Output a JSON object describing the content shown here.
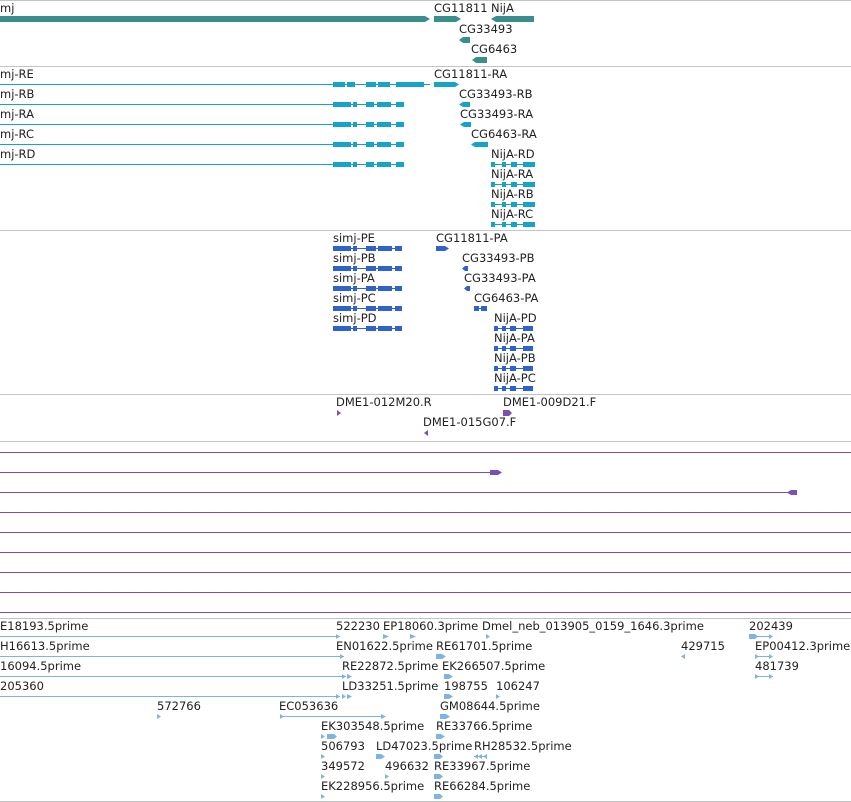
{
  "colors": {
    "gene": "#3a8f8e",
    "transcript": "#16a3c9",
    "protein": "#2f63cc",
    "clone": "#7b50b0",
    "est": "#7fb4e1",
    "divider": "#c4c4c4"
  },
  "tracks": {
    "genes": {
      "labels": [
        "mj",
        "CG11811",
        "NijA",
        "CG33493",
        "CG6463"
      ]
    },
    "transcripts": {
      "labels": [
        "mj-RE",
        "mj-RB",
        "mj-RA",
        "mj-RC",
        "mj-RD",
        "CG11811-RA",
        "CG33493-RB",
        "CG33493-RA",
        "CG6463-RA",
        "NijA-RD",
        "NijA-RA",
        "NijA-RB",
        "NijA-RC"
      ]
    },
    "proteins": {
      "labels": [
        "simj-PE",
        "simj-PB",
        "simj-PA",
        "simj-PC",
        "simj-PD",
        "CG11811-PA",
        "CG33493-PB",
        "CG33493-PA",
        "CG6463-PA",
        "NijA-PD",
        "NijA-PA",
        "NijA-PB",
        "NijA-PC"
      ]
    },
    "clones": {
      "labels": [
        "DME1-012M20.R",
        "DME1-009D21.F",
        "DME1-015G07.F"
      ]
    },
    "ests": {
      "labels": [
        "E18193.5prime",
        "H16613.5prime",
        "16094.5prime",
        "205360",
        "572766",
        "EC053636",
        "522230",
        "EP18060.3prime",
        "Dmel_neb_013905_0159_1646.3prime",
        "202439",
        "EN01622.5prime",
        "RE61701.5prime",
        "429715",
        "EP00412.3prime",
        "RE22872.5prime",
        "EK266507.5prime",
        "481739",
        "LD33251.5prime",
        "198755",
        "106247",
        "GM08644.5prime",
        "EK303548.5prime",
        "RE33766.5prime",
        "506793",
        "LD47023.5prime",
        "RH28532.5prime",
        "349572",
        "496632",
        "RE33967.5prime",
        "EK228956.5prime",
        "RE66284.5prime"
      ]
    }
  }
}
